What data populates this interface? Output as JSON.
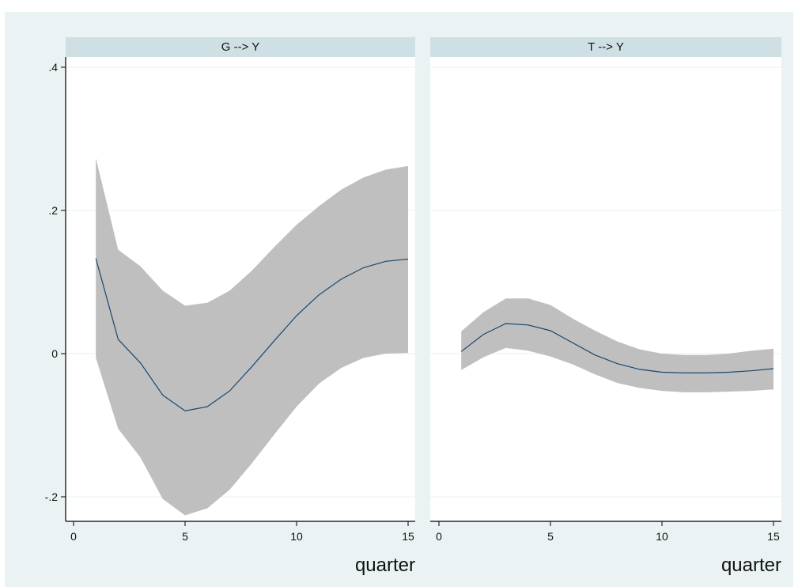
{
  "chart_data": {
    "type": "line",
    "ylim": [
      -0.23,
      0.4
    ],
    "yticks": [
      -0.2,
      0,
      0.2,
      0.4
    ],
    "ytick_labels": [
      "-.2",
      "0",
      ".2",
      ".4"
    ],
    "xticks": [
      0,
      5,
      10,
      15
    ],
    "xtick_labels": [
      "0",
      "5",
      "10",
      "15"
    ],
    "xlabel": "quarter",
    "grid": true,
    "colors": {
      "band": "#bfbfbf",
      "line": "#1a476f",
      "strip": "#eaf2f3",
      "outer": "#eaf2f3",
      "grid": "#eaf2f3"
    },
    "panels": [
      {
        "title": "G --> Y",
        "x": [
          1,
          2,
          3,
          4,
          5,
          6,
          7,
          8,
          9,
          10,
          11,
          12,
          13,
          14,
          15
        ],
        "irf": [
          0.133,
          0.02,
          -0.013,
          -0.058,
          -0.08,
          -0.074,
          -0.052,
          -0.018,
          0.018,
          0.053,
          0.082,
          0.104,
          0.12,
          0.129,
          0.132
        ],
        "lower": [
          -0.006,
          -0.105,
          -0.145,
          -0.203,
          -0.226,
          -0.216,
          -0.19,
          -0.153,
          -0.113,
          -0.074,
          -0.042,
          -0.02,
          -0.006,
          0.0,
          0.001
        ],
        "upper": [
          0.273,
          0.145,
          0.122,
          0.088,
          0.067,
          0.071,
          0.088,
          0.116,
          0.149,
          0.18,
          0.206,
          0.229,
          0.246,
          0.257,
          0.262
        ]
      },
      {
        "title": "T --> Y",
        "x": [
          1,
          2,
          3,
          4,
          5,
          6,
          7,
          8,
          9,
          10,
          11,
          12,
          13,
          14,
          15
        ],
        "irf": [
          0.003,
          0.027,
          0.042,
          0.04,
          0.032,
          0.015,
          -0.002,
          -0.014,
          -0.022,
          -0.026,
          -0.027,
          -0.027,
          -0.026,
          -0.024,
          -0.021
        ],
        "lower": [
          -0.023,
          -0.005,
          0.008,
          0.004,
          -0.004,
          -0.015,
          -0.029,
          -0.041,
          -0.048,
          -0.052,
          -0.054,
          -0.054,
          -0.053,
          -0.052,
          -0.05
        ],
        "upper": [
          0.031,
          0.058,
          0.077,
          0.077,
          0.068,
          0.049,
          0.032,
          0.017,
          0.006,
          0.0,
          -0.002,
          -0.002,
          0.0,
          0.004,
          0.007
        ]
      }
    ]
  }
}
